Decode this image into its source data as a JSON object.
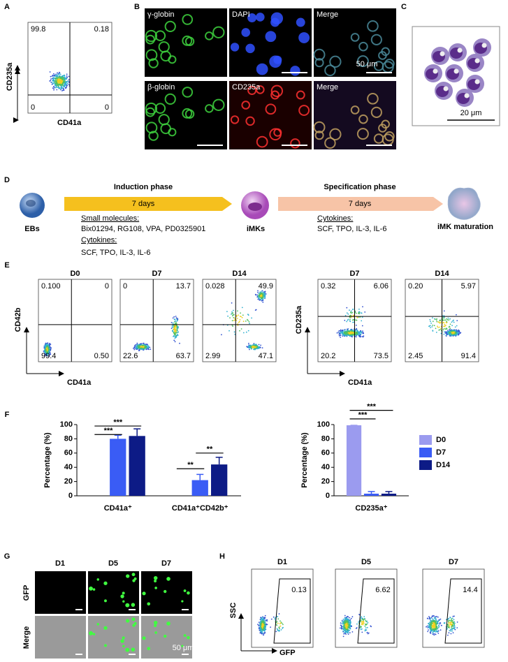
{
  "panels": {
    "a": "A",
    "b": "B",
    "c": "C",
    "d": "D",
    "e": "E",
    "f": "F",
    "g": "G",
    "h": "H"
  },
  "panel_a": {
    "y_label": "CD235a",
    "x_label": "CD41a",
    "quadrants": [
      "99.8",
      "0.18",
      "0",
      "0"
    ]
  },
  "panel_b": {
    "labels": [
      "γ-globin",
      "DAPI",
      "Merge",
      "β-globin",
      "CD235a",
      "Merge"
    ],
    "scale": "50 μm"
  },
  "panel_c": {
    "scale": "20 μm"
  },
  "panel_d": {
    "ebs": "EBs",
    "induction": "Induction phase",
    "days1": "7 days",
    "small_molecules_heading": "Small molecules:",
    "small_molecules": "Bix01294, RG108, VPA, PD0325901",
    "cytokines_heading1": "Cytokines:",
    "cytokines1": "SCF, TPO, IL-3, IL-6",
    "imks": "iMKs",
    "specification": "Specification phase",
    "days2": "7 days",
    "cytokines_heading2": "Cytokines:",
    "cytokines2": "SCF, TPO, IL-3, IL-6",
    "maturation": "iMK maturation"
  },
  "panel_e": {
    "group1": {
      "y_label": "CD42b",
      "x_label": "CD41a",
      "plots": [
        {
          "title": "D0",
          "quadrants": [
            "0.100",
            "0",
            "99.4",
            "0.50"
          ]
        },
        {
          "title": "D7",
          "quadrants": [
            "0",
            "13.7",
            "22.6",
            "63.7"
          ]
        },
        {
          "title": "D14",
          "quadrants": [
            "0.028",
            "49.9",
            "2.99",
            "47.1"
          ]
        }
      ]
    },
    "group2": {
      "y_label": "CD235a",
      "x_label": "CD41a",
      "plots": [
        {
          "title": "D7",
          "quadrants": [
            "0.32",
            "6.06",
            "20.2",
            "73.5"
          ]
        },
        {
          "title": "D14",
          "quadrants": [
            "0.20",
            "5.97",
            "2.45",
            "91.4"
          ]
        }
      ]
    }
  },
  "chart_data": [
    {
      "type": "bar",
      "y_label": "Percentage (%)",
      "categories": [
        "CD41a⁺",
        "CD41a⁺CD42b⁺"
      ],
      "series": [
        {
          "color": "#3a5cf5",
          "values": [
            80,
            22
          ],
          "errors": [
            5,
            8
          ]
        },
        {
          "color": "#0d1b86",
          "values": [
            84,
            44
          ],
          "errors": [
            10,
            10
          ]
        }
      ],
      "ylim": [
        0,
        100
      ],
      "yticks": [
        0,
        20,
        40,
        60,
        80,
        100
      ],
      "annotations": [
        "***",
        "***",
        "**",
        "**"
      ]
    },
    {
      "type": "bar",
      "y_label": "Percentage (%)",
      "categories": [
        "CD235a⁺"
      ],
      "series": [
        {
          "name": "D0",
          "color": "#9b9bef",
          "values": [
            99
          ],
          "errors": [
            0
          ]
        },
        {
          "name": "D7",
          "color": "#3a5cf5",
          "values": [
            3
          ],
          "errors": [
            3
          ]
        },
        {
          "name": "D14",
          "color": "#0d1b86",
          "values": [
            3
          ],
          "errors": [
            3
          ]
        }
      ],
      "ylim": [
        0,
        100
      ],
      "yticks": [
        0,
        20,
        40,
        60,
        80,
        100
      ],
      "annotations": [
        "***",
        "***"
      ],
      "legend": "right"
    }
  ],
  "panel_g": {
    "columns": [
      "D1",
      "D5",
      "D7"
    ],
    "rows": [
      "GFP",
      "Merge"
    ],
    "scale": "50 μm"
  },
  "panel_h": {
    "y_label": "SSC",
    "x_label": "GFP",
    "plots": [
      {
        "title": "D1",
        "gate": "0.13"
      },
      {
        "title": "D5",
        "gate": "6.62"
      },
      {
        "title": "D7",
        "gate": "14.4"
      }
    ]
  }
}
